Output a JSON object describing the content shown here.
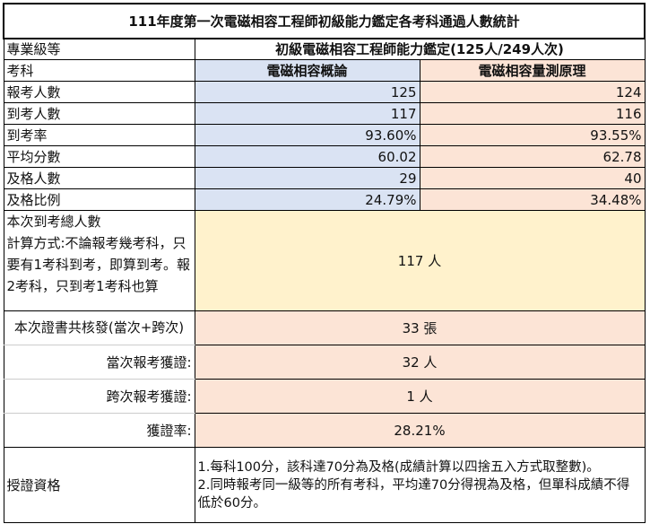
{
  "title": "111年度第一次電磁相容工程師初級能力鑑定各考科通過人數統計",
  "colors": {
    "subject1_bg": "#dae3f3",
    "subject2_bg": "#fce4d6",
    "total_bg": "#fff2cc"
  },
  "level_label": "專業級等",
  "level_value": "初級電磁相容工程師能力鑑定(125人/249人次)",
  "subject_label": "考科",
  "subjects": [
    "電磁相容概論",
    "電磁相容量測原理"
  ],
  "rows": [
    {
      "label": "報考人數",
      "values": [
        "125",
        "124"
      ]
    },
    {
      "label": "到考人數",
      "values": [
        "117",
        "116"
      ]
    },
    {
      "label": "到考率",
      "values": [
        "93.60%",
        "93.55%"
      ]
    },
    {
      "label": "平均分數",
      "values": [
        "60.02",
        "62.78"
      ]
    },
    {
      "label": "及格人數",
      "values": [
        "29",
        "40"
      ]
    },
    {
      "label": "及格比例",
      "values": [
        "24.79%",
        "34.48%"
      ]
    }
  ],
  "total": {
    "label": "本次到考總人數",
    "note": "計算方式:不論報考幾考科，只要有1考科到考，即算到考。報2考科，只到考1考科也算",
    "value": "117 人"
  },
  "certs": [
    {
      "label": "本次證書共核發(當次+跨次)",
      "value": "33 張"
    },
    {
      "label": "當次報考獲證:",
      "value": "32 人"
    },
    {
      "label": "跨次報考獲證:",
      "value": "1 人"
    },
    {
      "label": "獲證率:",
      "value": "28.21%"
    }
  ],
  "qualification": {
    "label": "授證資格",
    "items": [
      "1.每科100分，該科達70分為及格(成績計算以四捨五入方式取整數)。",
      "2.同時報考同一級等的所有考科，平均達70分得視為及格，但單科成績不得低於60分。"
    ]
  }
}
